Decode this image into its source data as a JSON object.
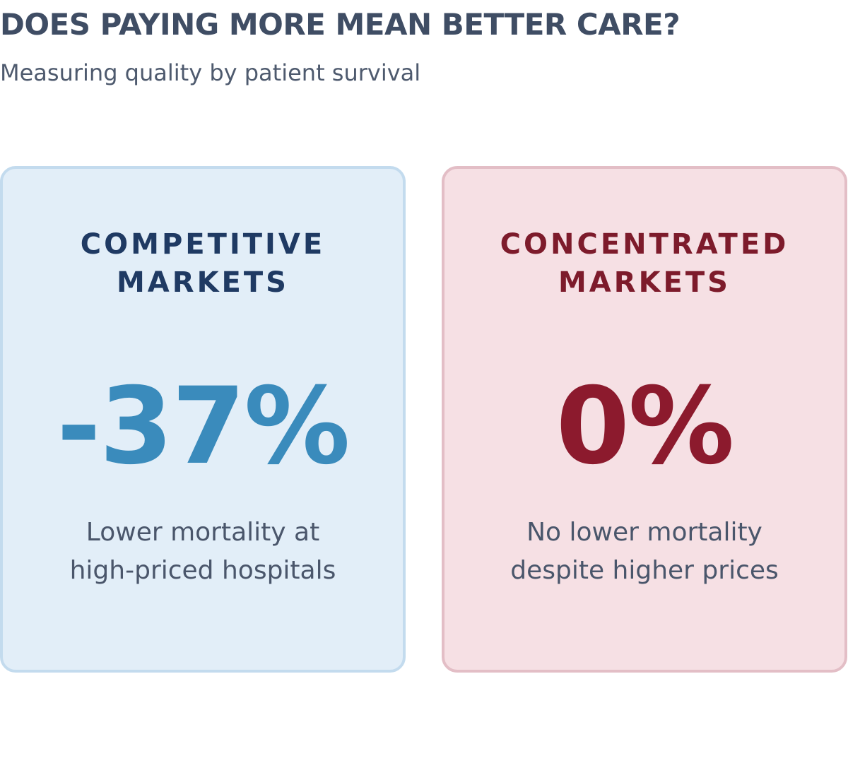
{
  "header": {
    "title": "DOES PAYING MORE MEAN BETTER CARE?",
    "subtitle": "Measuring quality by patient survival"
  },
  "cards": [
    {
      "heading_line1": "COMPETITIVE",
      "heading_line2": "MARKETS",
      "stat": "-37%",
      "desc_line1": "Lower mortality at",
      "desc_line2": "high-priced hospitals",
      "accent_color": "#3a8bbc",
      "background_color": "#e2eef8"
    },
    {
      "heading_line1": "CONCENTRATED",
      "heading_line2": "MARKETS",
      "stat": "0%",
      "desc_line1": "No lower mortality",
      "desc_line2": "despite higher prices",
      "accent_color": "#8c1a2d",
      "background_color": "#f6e0e4"
    }
  ]
}
